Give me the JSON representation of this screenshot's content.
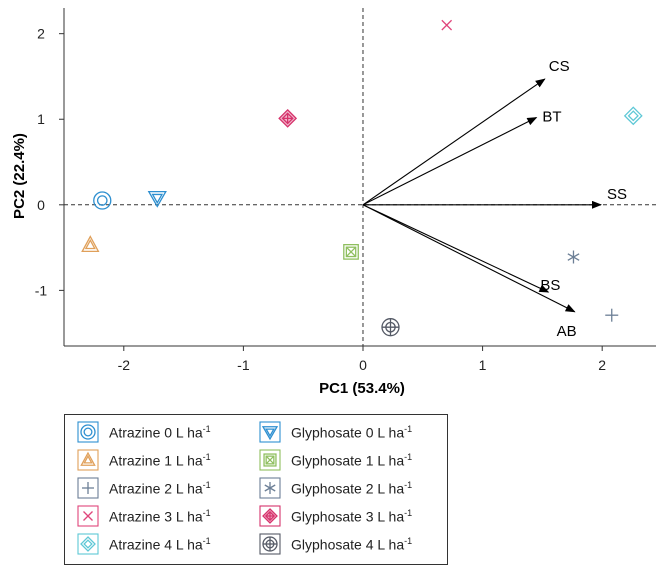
{
  "chart_data": {
    "type": "scatter",
    "xlabel": "PC1 (53.4%)",
    "ylabel": "PC2 (22.4%)",
    "xlim": [
      -2.5,
      2.45
    ],
    "ylim": [
      -1.65,
      2.3
    ],
    "xticks": [
      -2,
      -1,
      0,
      1,
      2
    ],
    "yticks": [
      -1,
      0,
      1,
      2
    ],
    "reference_lines": {
      "x": 0,
      "y": 0,
      "style": "dashed"
    },
    "grid": false,
    "points": [
      {
        "treatment": "Atrazine 0 L ha-1",
        "shape": "double-circle",
        "color": "#2d8fd0",
        "x": -2.18,
        "y": 0.05
      },
      {
        "treatment": "Atrazine 1 L ha-1",
        "shape": "nested-triangle",
        "color": "#e0a05a",
        "x": -2.28,
        "y": -0.47
      },
      {
        "treatment": "Atrazine 2 L ha-1",
        "shape": "plus",
        "color": "#6c7f96",
        "x": 2.08,
        "y": -1.29
      },
      {
        "treatment": "Atrazine 3 L ha-1",
        "shape": "cross",
        "color": "#e0457b",
        "x": 0.7,
        "y": 2.1
      },
      {
        "treatment": "Atrazine 4 L ha-1",
        "shape": "nested-diamond",
        "color": "#5ec8d6",
        "x": 2.26,
        "y": 1.04
      },
      {
        "treatment": "Glyphosate 0 L ha-1",
        "shape": "nested-down-triangle",
        "color": "#2d8fd0",
        "x": -1.72,
        "y": 0.08
      },
      {
        "treatment": "Glyphosate 1 L ha-1",
        "shape": "boxed-x",
        "color": "#8fbf5f",
        "x": -0.1,
        "y": -0.55
      },
      {
        "treatment": "Glyphosate 2 L ha-1",
        "shape": "asterisk",
        "color": "#6c7f96",
        "x": 1.76,
        "y": -0.61
      },
      {
        "treatment": "Glyphosate 3 L ha-1",
        "shape": "filled-diamond-plus",
        "color": "#d6336c",
        "x": -0.63,
        "y": 1.01
      },
      {
        "treatment": "Glyphosate 4 L ha-1",
        "shape": "circle-plus",
        "color": "#555a66",
        "x": 0.23,
        "y": -1.43
      }
    ],
    "vectors": [
      {
        "label": "CS",
        "x": 1.52,
        "y": 1.47
      },
      {
        "label": "BT",
        "x": 1.45,
        "y": 1.02
      },
      {
        "label": "SS",
        "x": 1.99,
        "y": 0.0
      },
      {
        "label": "BS",
        "x": 1.55,
        "y": -1.02
      },
      {
        "label": "AB",
        "x": 1.77,
        "y": -1.25
      }
    ]
  },
  "legend": {
    "items": [
      {
        "text": "Atrazine 0 L ha",
        "sup": "-1",
        "shape": "double-circle",
        "color": "#2d8fd0"
      },
      {
        "text": "Atrazine 1 L ha",
        "sup": "-1",
        "shape": "nested-triangle",
        "color": "#e0a05a"
      },
      {
        "text": "Atrazine 2 L ha",
        "sup": "-1",
        "shape": "plus",
        "color": "#6c7f96"
      },
      {
        "text": "Atrazine 3 L ha",
        "sup": "-1",
        "shape": "cross",
        "color": "#e0457b"
      },
      {
        "text": "Atrazine 4 L ha",
        "sup": "-1",
        "shape": "nested-diamond",
        "color": "#5ec8d6"
      },
      {
        "text": "Glyphosate 0 L ha",
        "sup": "-1",
        "shape": "nested-down-triangle",
        "color": "#2d8fd0"
      },
      {
        "text": "Glyphosate 1 L ha",
        "sup": "-1",
        "shape": "boxed-x",
        "color": "#8fbf5f"
      },
      {
        "text": "Glyphosate 2 L ha",
        "sup": "-1",
        "shape": "asterisk",
        "color": "#6c7f96"
      },
      {
        "text": "Glyphosate 3 L ha",
        "sup": "-1",
        "shape": "filled-diamond-plus",
        "color": "#d6336c"
      },
      {
        "text": "Glyphosate 4 L ha",
        "sup": "-1",
        "shape": "circle-plus",
        "color": "#555a66"
      }
    ]
  }
}
